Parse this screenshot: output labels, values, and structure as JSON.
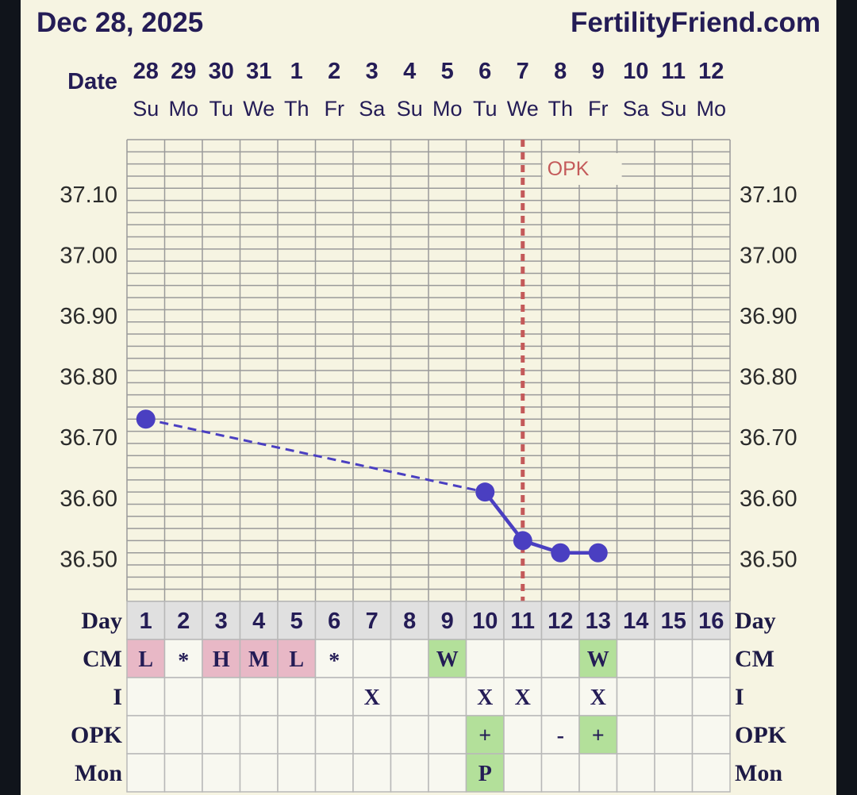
{
  "header": {
    "date": "Dec 28, 2025",
    "site": "FertilityFriend.com"
  },
  "labels": {
    "date_row": "Day",
    "date_label": "Date",
    "cm": "CM",
    "intercourse": "I",
    "opk": "OPK",
    "monitor": "Mon"
  },
  "colors": {
    "background": "#f6f4e2",
    "grid": "#9a9a9a",
    "line": "#4a3fc1",
    "opk_marker": "#c45a5a",
    "cm_menstrual": "#e8b8c6",
    "cm_watery": "#b3e09a",
    "positive": "#b3e09a"
  },
  "chart_data": {
    "type": "line",
    "dates": [
      "28",
      "29",
      "30",
      "31",
      "1",
      "2",
      "3",
      "4",
      "5",
      "6",
      "7",
      "8",
      "9",
      "10",
      "11",
      "12"
    ],
    "weekdays": [
      "Su",
      "Mo",
      "Tu",
      "We",
      "Th",
      "Fr",
      "Sa",
      "Su",
      "Mo",
      "Tu",
      "We",
      "Th",
      "Fr",
      "Sa",
      "Su",
      "Mo"
    ],
    "cycle_days": [
      "1",
      "2",
      "3",
      "4",
      "5",
      "6",
      "7",
      "8",
      "9",
      "10",
      "11",
      "12",
      "13",
      "14",
      "15",
      "16"
    ],
    "y_ticks": [
      "37.10",
      "37.00",
      "36.90",
      "36.80",
      "36.70",
      "36.60",
      "36.50"
    ],
    "ylim": [
      36.43,
      37.19
    ],
    "temps": [
      36.73,
      null,
      null,
      null,
      null,
      null,
      null,
      null,
      null,
      36.61,
      36.53,
      36.51,
      36.51,
      null,
      null,
      null
    ],
    "dashed_segment": [
      1,
      10
    ],
    "solid_segment": [
      10,
      13
    ],
    "opk_marker_day": 11,
    "opk_marker_label": "OPK",
    "grid": true
  },
  "rows": {
    "cm": [
      "L",
      "*",
      "H",
      "M",
      "L",
      "*",
      "",
      "",
      "W",
      "",
      "",
      "",
      "W",
      "",
      "",
      ""
    ],
    "intercourse": [
      "",
      "",
      "",
      "",
      "",
      "",
      "X",
      "",
      "",
      "X",
      "X",
      "",
      "X",
      "",
      "",
      ""
    ],
    "opk": [
      "",
      "",
      "",
      "",
      "",
      "",
      "",
      "",
      "",
      "+",
      "",
      "-",
      "+",
      "",
      "",
      ""
    ],
    "monitor": [
      "",
      "",
      "",
      "",
      "",
      "",
      "",
      "",
      "",
      "P",
      "",
      "",
      "",
      "",
      "",
      ""
    ]
  }
}
